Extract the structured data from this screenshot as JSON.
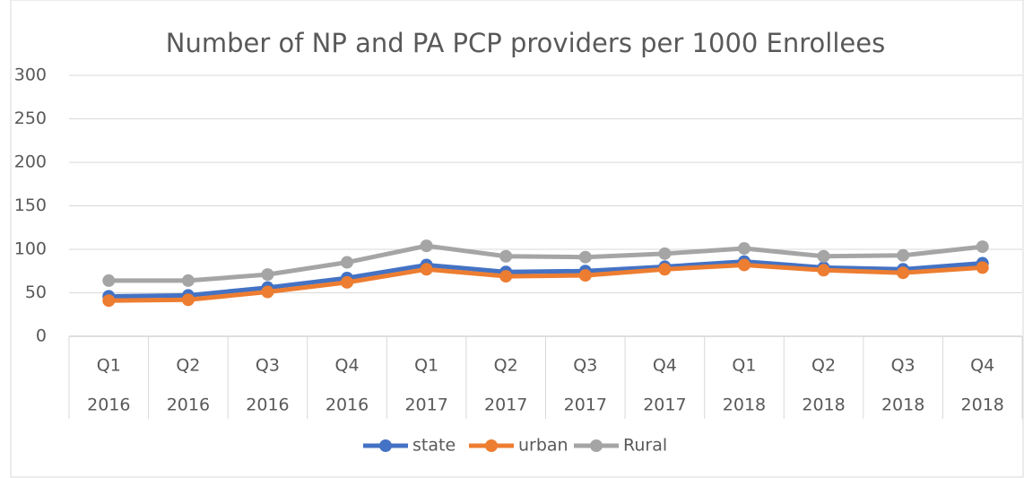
{
  "chart_data": {
    "type": "line",
    "title": "Number of NP and PA PCP providers per 1000 Enrollees",
    "categories": [
      [
        "Q1",
        "2016"
      ],
      [
        "Q2",
        "2016"
      ],
      [
        "Q3",
        "2016"
      ],
      [
        "Q4",
        "2016"
      ],
      [
        "Q1",
        "2017"
      ],
      [
        "Q2",
        "2017"
      ],
      [
        "Q3",
        "2017"
      ],
      [
        "Q4",
        "2017"
      ],
      [
        "Q1",
        "2018"
      ],
      [
        "Q2",
        "2018"
      ],
      [
        "Q3",
        "2018"
      ],
      [
        "Q4",
        "2018"
      ]
    ],
    "series": [
      {
        "name": "state",
        "color": "#4472c4",
        "values": [
          46,
          47,
          56,
          67,
          82,
          74,
          75,
          80,
          86,
          79,
          77,
          84
        ]
      },
      {
        "name": "urban",
        "color": "#ed7d31",
        "values": [
          41,
          42,
          51,
          62,
          77,
          69,
          70,
          77,
          82,
          76,
          73,
          79
        ]
      },
      {
        "name": "Rural",
        "color": "#a5a5a5",
        "values": [
          64,
          64,
          71,
          85,
          104,
          92,
          91,
          95,
          101,
          92,
          93,
          103
        ]
      }
    ],
    "ylim": [
      0,
      300
    ],
    "yticks": [
      0,
      50,
      100,
      150,
      200,
      250,
      300
    ],
    "grid": true,
    "legend": "bottom"
  }
}
